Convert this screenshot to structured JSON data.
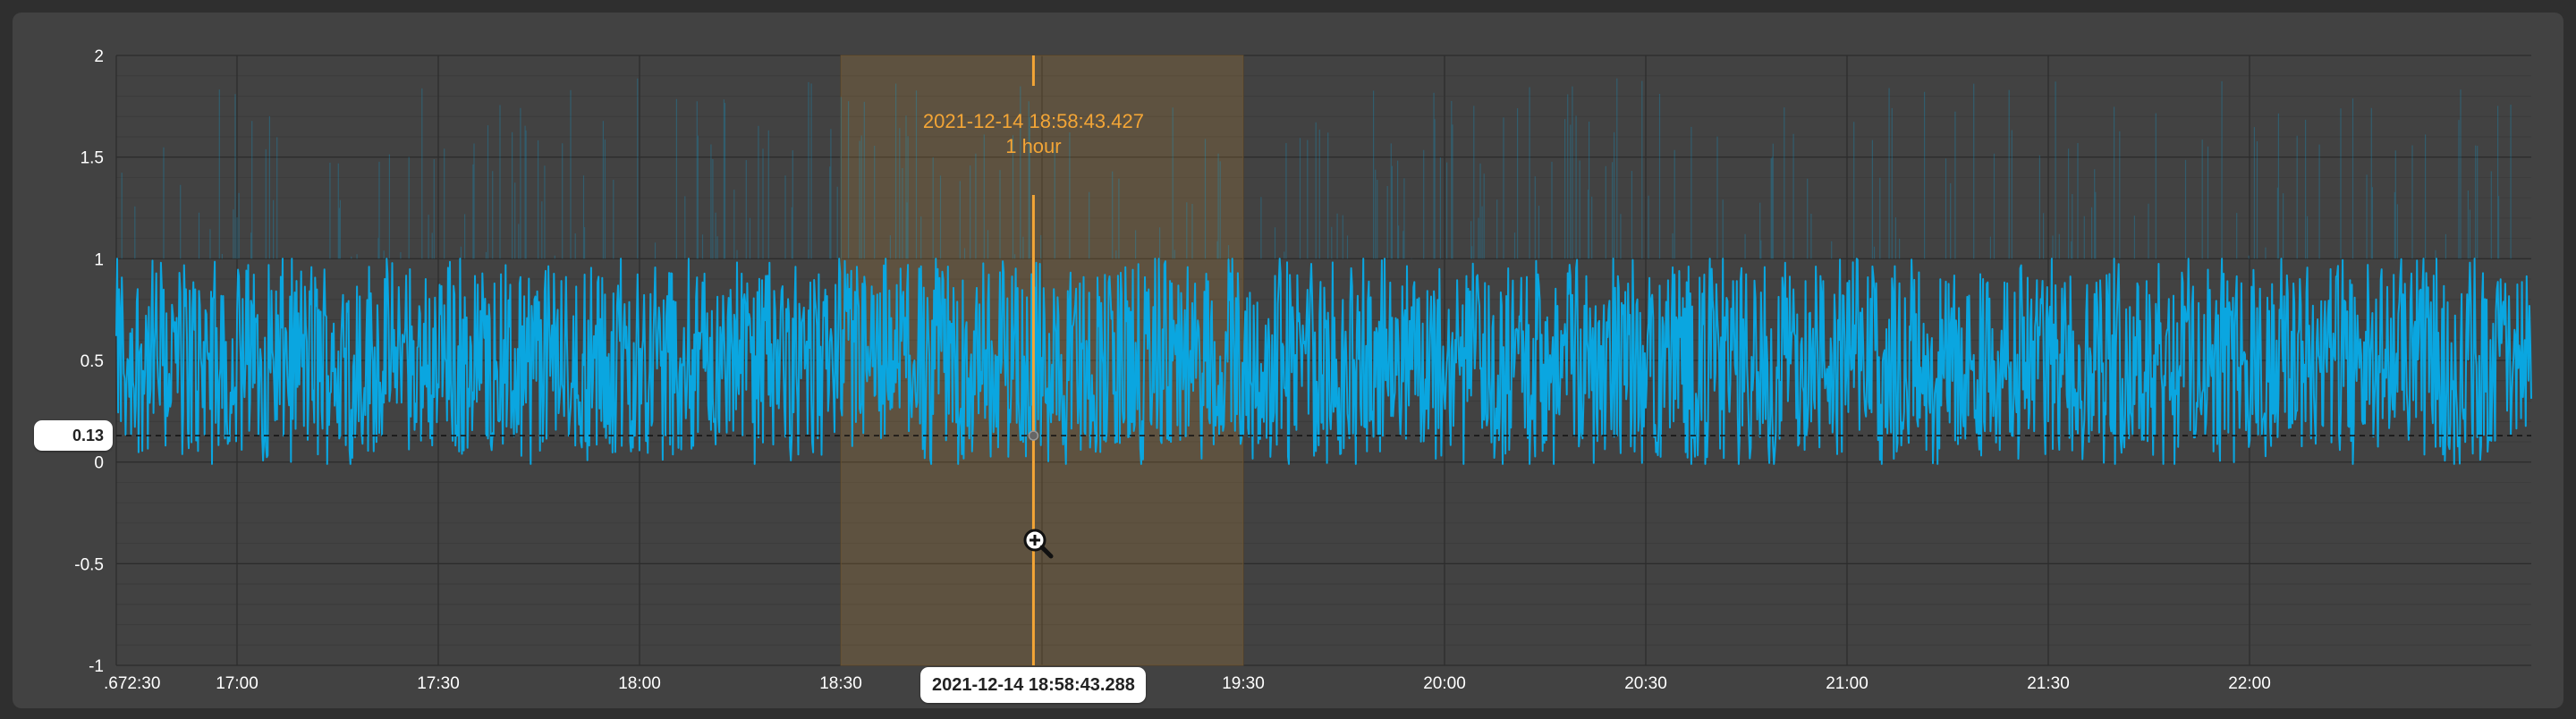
{
  "chart_data": {
    "type": "line",
    "title": "",
    "xlabel": "",
    "ylabel": "",
    "ylim": [
      -1,
      2
    ],
    "yticks": [
      "2",
      "1.5",
      "1",
      "0.5",
      "0",
      "-0.5",
      "-1"
    ],
    "xlim": [
      "16:42",
      "22:42"
    ],
    "xticks": [
      ".672:30",
      "17:00",
      "17:30",
      "18:00",
      "18:30",
      "19:00",
      "19:30",
      "20:00",
      "20:30",
      "21:00",
      "21:30",
      "22:00"
    ],
    "grid": true,
    "series": [
      {
        "color": "#0aa6e0",
        "band": [
          -0.1,
          1.9
        ],
        "baseline": 0.5,
        "x": [
          "16:42",
          "17:00",
          "17:30",
          "18:00",
          "18:30",
          "19:00",
          "19:30",
          "20:00",
          "20:30",
          "21:00",
          "21:30",
          "22:00",
          "22:42"
        ],
        "y": [
          0.5,
          0.55,
          0.45,
          0.5,
          0.5,
          0.55,
          0.5,
          0.45,
          0.5,
          0.5,
          0.45,
          0.5,
          0.5
        ],
        "min": -0.01,
        "max": 1.0
      }
    ],
    "selection": {
      "start": "18:30",
      "end": "19:30",
      "cursor_time": "2021-12-14 18:58:43.427",
      "duration": "1 hour",
      "color": "#f3a536"
    },
    "crosshair": {
      "y_value": "0.13",
      "x_value": "2021-12-14 18:58:43.288"
    }
  }
}
